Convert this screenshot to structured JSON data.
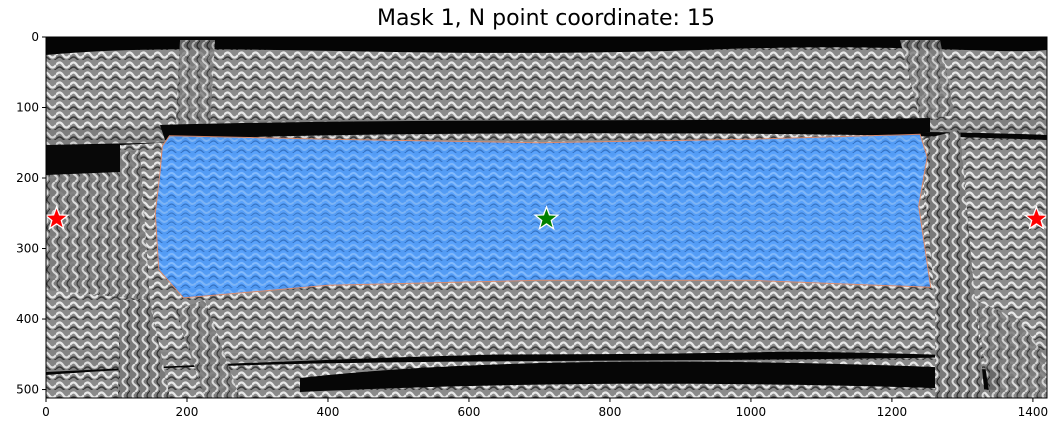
{
  "title": "Mask 1, N point coordinate: 15",
  "image": {
    "width_units": 1420,
    "height_units": 512,
    "mask_color": "#4f9eff",
    "positive_star_color": "#008000",
    "negative_star_color": "#ff0000"
  },
  "axes": {
    "x_ticks": [
      0,
      200,
      400,
      600,
      800,
      1000,
      1200,
      1400
    ],
    "y_ticks": [
      0,
      100,
      200,
      300,
      400,
      500
    ]
  },
  "points": [
    {
      "label": "negative",
      "x": 15,
      "y": 258,
      "color": "#ff0000"
    },
    {
      "label": "positive",
      "x": 710,
      "y": 258,
      "color": "#008000"
    },
    {
      "label": "negative",
      "x": 1405,
      "y": 258,
      "color": "#ff0000"
    }
  ],
  "mask_outline": [
    [
      165,
      155
    ],
    [
      175,
      140
    ],
    [
      400,
      145
    ],
    [
      700,
      150
    ],
    [
      1000,
      145
    ],
    [
      1240,
      138
    ],
    [
      1250,
      170
    ],
    [
      1238,
      240
    ],
    [
      1255,
      355
    ],
    [
      1000,
      345
    ],
    [
      700,
      345
    ],
    [
      400,
      352
    ],
    [
      195,
      370
    ],
    [
      160,
      330
    ],
    [
      155,
      250
    ],
    [
      162,
      190
    ]
  ]
}
